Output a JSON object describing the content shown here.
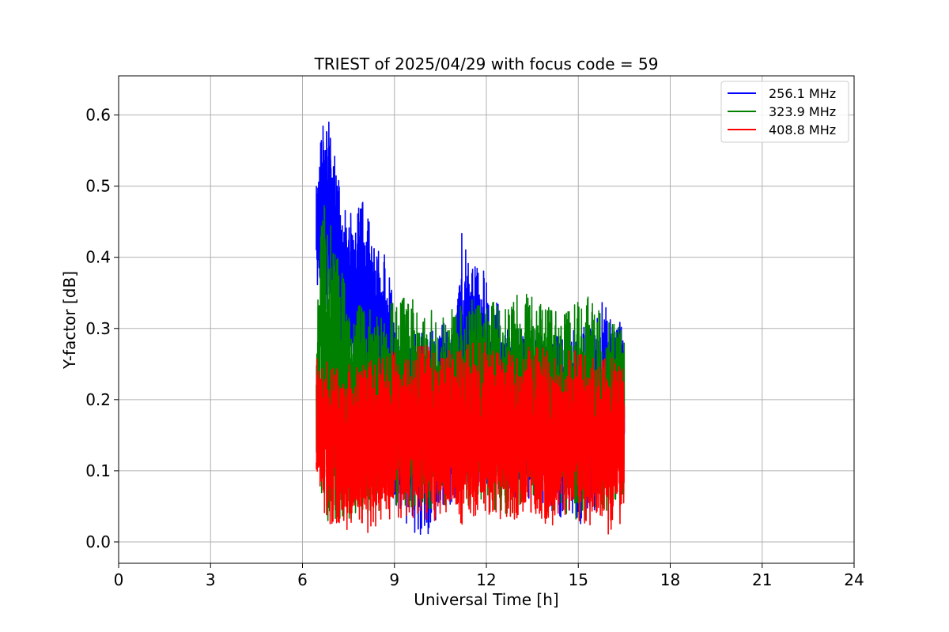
{
  "chart_data": {
    "type": "line",
    "title": "TRIEST of 2025/04/29 with focus code = 59",
    "xlabel": "Universal Time [h]",
    "ylabel": "Y-factor [dB]",
    "xlim": [
      0,
      24
    ],
    "ylim": [
      -0.03,
      0.655
    ],
    "xticks": [
      0,
      3,
      6,
      9,
      12,
      15,
      18,
      21,
      24
    ],
    "yticks": [
      0.0,
      0.1,
      0.2,
      0.3,
      0.4,
      0.5,
      0.6
    ],
    "ytick_labels": [
      "0.0",
      "0.1",
      "0.2",
      "0.3",
      "0.4",
      "0.5",
      "0.6"
    ],
    "grid": true,
    "legend": "top-right",
    "x_start": 6.45,
    "x_end": 16.5,
    "series": [
      {
        "name": "256.1 MHz",
        "color": "#0000ff",
        "envelope": {
          "x": [
            6.45,
            6.6,
            6.8,
            7.0,
            7.3,
            7.6,
            8.0,
            8.3,
            8.6,
            9.0,
            9.5,
            10.0,
            10.5,
            11.0,
            11.2,
            11.5,
            12.0,
            12.5,
            13.0,
            13.5,
            14.0,
            14.5,
            15.0,
            15.5,
            15.8,
            16.0,
            16.5
          ],
          "max": [
            0.52,
            0.58,
            0.62,
            0.56,
            0.48,
            0.47,
            0.48,
            0.43,
            0.42,
            0.34,
            0.31,
            0.3,
            0.3,
            0.34,
            0.46,
            0.4,
            0.38,
            0.32,
            0.31,
            0.3,
            0.3,
            0.29,
            0.3,
            0.31,
            0.34,
            0.32,
            0.31
          ],
          "min": [
            0.35,
            0.34,
            0.32,
            0.27,
            0.24,
            0.22,
            0.19,
            0.16,
            0.1,
            0.05,
            0.02,
            0.0,
            0.04,
            0.06,
            0.06,
            0.07,
            0.07,
            0.07,
            0.06,
            0.05,
            0.04,
            0.03,
            0.02,
            0.04,
            0.05,
            0.07,
            0.08
          ]
        }
      },
      {
        "name": "323.9 MHz",
        "color": "#008000",
        "envelope": {
          "x": [
            6.45,
            6.6,
            6.8,
            7.0,
            7.5,
            8.0,
            8.5,
            9.0,
            9.5,
            10.0,
            10.5,
            11.0,
            11.5,
            12.0,
            12.5,
            13.0,
            13.5,
            14.0,
            14.5,
            15.0,
            15.3,
            15.5,
            16.0,
            16.5
          ],
          "max": [
            0.29,
            0.44,
            0.5,
            0.42,
            0.36,
            0.33,
            0.33,
            0.34,
            0.35,
            0.33,
            0.32,
            0.33,
            0.34,
            0.35,
            0.33,
            0.35,
            0.35,
            0.33,
            0.33,
            0.34,
            0.36,
            0.34,
            0.31,
            0.3
          ],
          "min": [
            0.09,
            0.05,
            0.03,
            0.03,
            0.03,
            0.04,
            0.04,
            0.05,
            0.04,
            0.04,
            0.04,
            0.05,
            0.05,
            0.05,
            0.04,
            0.04,
            0.05,
            0.04,
            0.04,
            0.03,
            0.0,
            0.04,
            0.04,
            0.03
          ]
        }
      },
      {
        "name": "408.8 MHz",
        "color": "#ff0000",
        "envelope": {
          "x": [
            6.45,
            6.6,
            7.0,
            7.5,
            8.0,
            8.5,
            9.0,
            9.5,
            10.0,
            10.5,
            11.0,
            11.5,
            12.0,
            12.5,
            13.0,
            13.5,
            14.0,
            14.5,
            15.0,
            15.5,
            16.0,
            16.5
          ],
          "max": [
            0.27,
            0.26,
            0.25,
            0.25,
            0.25,
            0.26,
            0.27,
            0.27,
            0.28,
            0.27,
            0.27,
            0.28,
            0.28,
            0.27,
            0.27,
            0.28,
            0.27,
            0.27,
            0.27,
            0.26,
            0.26,
            0.26
          ],
          "min": [
            0.08,
            0.04,
            0.02,
            0.01,
            0.01,
            0.02,
            0.03,
            0.03,
            0.03,
            0.03,
            0.02,
            0.03,
            0.04,
            0.03,
            0.03,
            0.03,
            0.02,
            0.03,
            0.02,
            0.01,
            0.01,
            0.02
          ]
        }
      }
    ]
  }
}
